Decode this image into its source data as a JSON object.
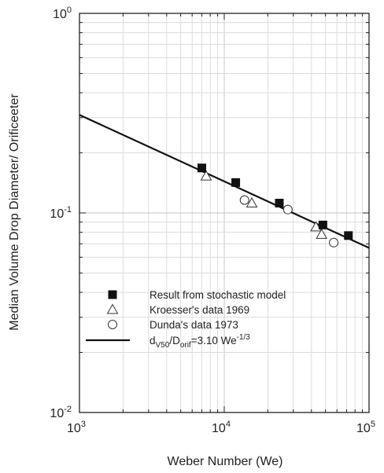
{
  "chart_data": {
    "type": "scatter",
    "x_scale": "log",
    "y_scale": "log",
    "xlim": [
      1000,
      100000
    ],
    "ylim": [
      0.01,
      1
    ],
    "grid": true,
    "xlabel": "Weber Number (We)",
    "ylabel": "Median Volume Drop Diameter/ Orificeeter",
    "x_ticks": [
      {
        "base": "10",
        "exp": "3",
        "value": 1000
      },
      {
        "base": "10",
        "exp": "4",
        "value": 10000
      },
      {
        "base": "10",
        "exp": "5",
        "value": 100000
      }
    ],
    "y_ticks": [
      {
        "base": "10",
        "exp": "-2",
        "value": 0.01
      },
      {
        "base": "10",
        "exp": "-1",
        "value": 0.1
      },
      {
        "base": "10",
        "exp": "0",
        "value": 1
      }
    ],
    "legend_position": "lower-left",
    "series": [
      {
        "name": "Result from stochastic model",
        "marker": "filled-square",
        "color": "#111111",
        "points": [
          [
            7000,
            0.168
          ],
          [
            12000,
            0.142
          ],
          [
            24000,
            0.112
          ],
          [
            48000,
            0.087
          ],
          [
            72000,
            0.077
          ]
        ]
      },
      {
        "name": "Kroesser's data 1969",
        "marker": "open-triangle",
        "color": "#333333",
        "points": [
          [
            7500,
            0.153
          ],
          [
            15500,
            0.112
          ],
          [
            43000,
            0.085
          ],
          [
            47000,
            0.078
          ]
        ]
      },
      {
        "name": "Dunda's data 1973",
        "marker": "open-circle",
        "color": "#333333",
        "points": [
          [
            13800,
            0.116
          ],
          [
            27500,
            0.104
          ],
          [
            57000,
            0.071
          ]
        ]
      },
      {
        "name_parts": {
          "d": "d",
          "d_sub": "V50",
          "slash": "/D",
          "D_sub": "orif",
          "rest": "=3.10 We",
          "sup": "-1/3"
        },
        "marker": "line",
        "color": "#111111",
        "fit": {
          "coef": 3.1,
          "power": -0.3333333
        }
      }
    ]
  }
}
